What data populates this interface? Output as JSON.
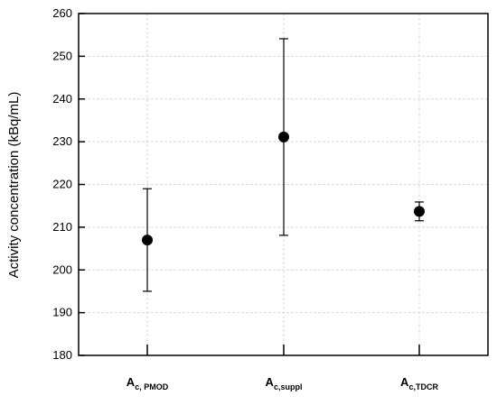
{
  "chart_data": {
    "type": "errorbar",
    "y_label": "Activity concentration (kBq/mL)",
    "categories": [
      {
        "main": "A",
        "sub": "c, PMOD"
      },
      {
        "main": "A",
        "sub": "c,suppl"
      },
      {
        "main": "A",
        "sub": "c,TDCR"
      }
    ],
    "series": [
      {
        "name": "Activity concentration",
        "color": "#000000",
        "values": [
          207,
          231.1,
          213.7
        ],
        "errors": [
          12,
          23,
          2.2
        ]
      }
    ],
    "ylim": [
      180,
      260
    ],
    "yticks": [
      180,
      190,
      200,
      210,
      220,
      230,
      240,
      250,
      260
    ],
    "grid": true
  }
}
